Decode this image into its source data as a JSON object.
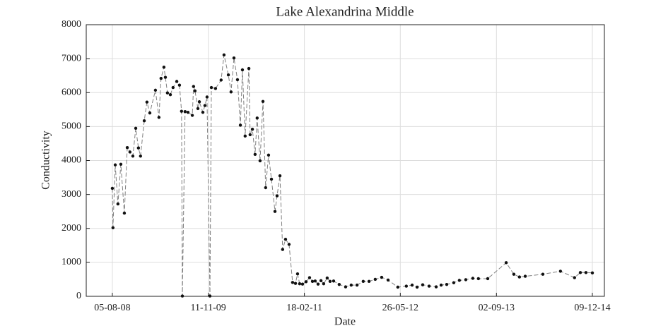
{
  "chart_data": {
    "type": "line",
    "title": "Lake Alexandrina Middle",
    "xlabel": "Date",
    "ylabel": "Conductivity",
    "x": [
      "2008-08-05",
      "2008-08-08",
      "2008-08-19",
      "2008-09-01",
      "2008-09-15",
      "2008-10-02",
      "2008-10-16",
      "2008-10-29",
      "2008-11-12",
      "2008-11-26",
      "2008-12-09",
      "2008-12-19",
      "2009-01-06",
      "2009-01-19",
      "2009-02-02",
      "2009-03-01",
      "2009-03-18",
      "2009-03-28",
      "2009-04-11",
      "2009-04-18",
      "2009-04-28",
      "2009-05-12",
      "2009-05-25",
      "2009-06-12",
      "2009-06-25",
      "2009-07-05",
      "2009-07-09",
      "2009-07-22",
      "2009-08-05",
      "2009-08-26",
      "2009-09-01",
      "2009-09-08",
      "2009-09-22",
      "2009-09-29",
      "2009-10-16",
      "2009-10-26",
      "2009-11-05",
      "2009-11-19",
      "2009-11-26",
      "2009-12-16",
      "2010-01-12",
      "2010-01-26",
      "2010-02-16",
      "2010-03-01",
      "2010-03-15",
      "2010-04-01",
      "2010-04-15",
      "2010-04-25",
      "2010-05-08",
      "2010-05-26",
      "2010-06-01",
      "2010-06-12",
      "2010-06-25",
      "2010-07-05",
      "2010-07-19",
      "2010-08-02",
      "2010-08-15",
      "2010-08-29",
      "2010-09-12",
      "2010-09-29",
      "2010-10-09",
      "2010-10-23",
      "2010-11-05",
      "2010-11-19",
      "2010-12-06",
      "2010-12-23",
      "2011-01-06",
      "2011-01-16",
      "2011-01-26",
      "2011-02-09",
      "2011-02-26",
      "2011-03-15",
      "2011-03-29",
      "2011-04-11",
      "2011-04-25",
      "2011-05-09",
      "2011-05-22",
      "2011-06-08",
      "2011-06-22",
      "2011-07-09",
      "2011-08-05",
      "2011-09-05",
      "2011-10-02",
      "2011-10-30",
      "2011-11-29",
      "2011-12-27",
      "2012-01-26",
      "2012-02-26",
      "2012-03-28",
      "2012-05-14",
      "2012-06-24",
      "2012-07-22",
      "2012-08-15",
      "2012-09-11",
      "2012-10-12",
      "2012-11-15",
      "2012-12-09",
      "2013-01-05",
      "2013-02-08",
      "2013-03-07",
      "2013-04-07",
      "2013-05-11",
      "2013-06-07",
      "2013-07-22",
      "2013-10-19",
      "2013-11-25",
      "2013-12-22",
      "2014-01-19",
      "2014-04-14",
      "2014-07-08",
      "2014-09-14",
      "2014-10-12",
      "2014-11-08",
      "2014-12-09"
    ],
    "values": [
      3180,
      2020,
      3870,
      2720,
      3890,
      2450,
      4380,
      4250,
      4130,
      4950,
      4370,
      4130,
      5170,
      5720,
      5400,
      6070,
      5270,
      6420,
      6750,
      6450,
      5990,
      5940,
      6150,
      6330,
      6220,
      5450,
      10,
      5440,
      5420,
      5330,
      6180,
      6050,
      5530,
      5730,
      5420,
      5620,
      5870,
      10,
      6150,
      6120,
      6370,
      7110,
      6520,
      6020,
      7020,
      6380,
      5040,
      6670,
      4720,
      6710,
      4760,
      4920,
      4180,
      5250,
      3990,
      5740,
      3200,
      4160,
      3450,
      2500,
      2960,
      3550,
      1380,
      1680,
      1530,
      410,
      380,
      660,
      370,
      360,
      430,
      550,
      440,
      450,
      360,
      460,
      370,
      540,
      440,
      450,
      350,
      280,
      330,
      330,
      440,
      440,
      500,
      560,
      480,
      270,
      300,
      330,
      270,
      340,
      300,
      280,
      330,
      350,
      400,
      470,
      490,
      530,
      520,
      520,
      990,
      650,
      570,
      590,
      650,
      740,
      550,
      700,
      700,
      690
    ],
    "color": "#808080",
    "marker_color": "#111111",
    "linestyle": "dashed",
    "grid": true,
    "xlim": [
      "2008-04-01",
      "2015-02-05"
    ],
    "xticks": [
      {
        "value": "2008-08-05",
        "label": "05-08-08"
      },
      {
        "value": "2009-11-11",
        "label": "11-11-09"
      },
      {
        "value": "2011-02-18",
        "label": "18-02-11"
      },
      {
        "value": "2012-05-26",
        "label": "26-05-12"
      },
      {
        "value": "2013-09-02",
        "label": "02-09-13"
      },
      {
        "value": "2014-12-09",
        "label": "09-12-14"
      }
    ],
    "ylim": [
      0,
      8000
    ],
    "yticks": [
      0,
      1000,
      2000,
      3000,
      4000,
      5000,
      6000,
      7000,
      8000
    ]
  }
}
